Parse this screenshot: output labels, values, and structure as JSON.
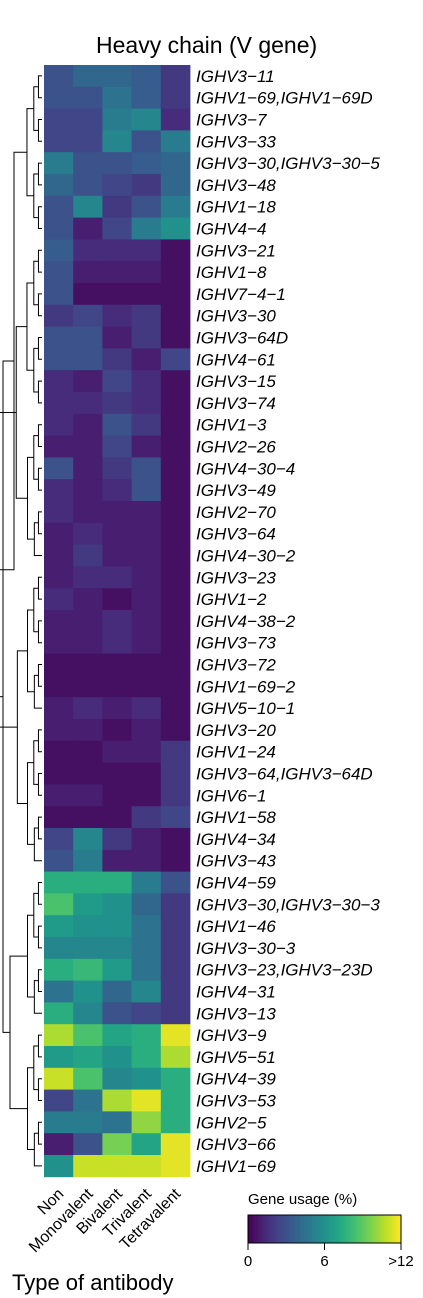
{
  "chart_data": {
    "type": "heatmap",
    "title": "Heavy chain (V gene)",
    "xlabel": "Type of antibody",
    "columns": [
      "Non",
      "Monovalent",
      "Bivalent",
      "Trivalent",
      "Tetravalent"
    ],
    "rows": [
      "IGHV3−11",
      "IGHV1−69,IGHV1−69D",
      "IGHV3−7",
      "IGHV3−33",
      "IGHV3−30,IGHV3−30−5",
      "IGHV3−48",
      "IGHV1−18",
      "IGHV4−4",
      "IGHV3−21",
      "IGHV1−8",
      "IGHV7−4−1",
      "IGHV3−30",
      "IGHV3−64D",
      "IGHV4−61",
      "IGHV3−15",
      "IGHV3−74",
      "IGHV1−3",
      "IGHV2−26",
      "IGHV4−30−4",
      "IGHV3−49",
      "IGHV2−70",
      "IGHV3−64",
      "IGHV4−30−2",
      "IGHV3−23",
      "IGHV1−2",
      "IGHV4−38−2",
      "IGHV3−73",
      "IGHV3−72",
      "IGHV1−69−2",
      "IGHV5−10−1",
      "IGHV3−20",
      "IGHV1−24",
      "IGHV3−64,IGHV3−64D",
      "IGHV6−1",
      "IGHV1−58",
      "IGHV4−34",
      "IGHV3−43",
      "IGHV4−59",
      "IGHV3−30,IGHV3−30−3",
      "IGHV1−46",
      "IGHV3−30−3",
      "IGHV3−23,IGHV3−23D",
      "IGHV4−31",
      "IGHV3−13",
      "IGHV3−9",
      "IGHV5−51",
      "IGHV4−39",
      "IGHV3−53",
      "IGHV2−5",
      "IGHV3−66",
      "IGHV1−69"
    ],
    "values": [
      [
        3.0,
        4.0,
        4.0,
        3.5,
        2.0
      ],
      [
        3.0,
        3.0,
        4.5,
        3.5,
        2.0
      ],
      [
        2.5,
        2.5,
        5.0,
        5.5,
        1.5
      ],
      [
        2.5,
        2.5,
        5.5,
        3.0,
        5.0
      ],
      [
        5.0,
        3.0,
        3.0,
        3.5,
        4.0
      ],
      [
        4.0,
        3.0,
        2.5,
        2.0,
        4.0
      ],
      [
        3.0,
        5.5,
        2.0,
        3.0,
        5.0
      ],
      [
        3.0,
        1.0,
        2.5,
        5.0,
        6.0
      ],
      [
        3.5,
        1.5,
        1.5,
        1.5,
        0.5
      ],
      [
        3.0,
        1.0,
        1.0,
        1.0,
        0.5
      ],
      [
        3.0,
        0.5,
        0.5,
        0.5,
        0.5
      ],
      [
        2.0,
        2.5,
        1.5,
        2.0,
        0.5
      ],
      [
        3.0,
        3.0,
        1.0,
        2.0,
        0.5
      ],
      [
        3.0,
        3.0,
        2.0,
        1.0,
        2.5
      ],
      [
        1.5,
        1.0,
        2.5,
        1.5,
        0.5
      ],
      [
        1.5,
        1.5,
        2.0,
        1.5,
        0.5
      ],
      [
        1.5,
        1.0,
        3.0,
        2.0,
        0.5
      ],
      [
        1.0,
        1.0,
        2.5,
        1.0,
        0.5
      ],
      [
        3.0,
        1.0,
        2.0,
        3.0,
        0.5
      ],
      [
        1.5,
        1.0,
        1.5,
        3.0,
        0.5
      ],
      [
        1.5,
        1.0,
        1.0,
        1.0,
        0.5
      ],
      [
        1.0,
        1.5,
        1.0,
        1.0,
        0.5
      ],
      [
        1.0,
        2.0,
        1.0,
        1.0,
        0.5
      ],
      [
        1.0,
        1.5,
        1.5,
        1.0,
        0.5
      ],
      [
        1.5,
        1.0,
        0.5,
        1.0,
        0.5
      ],
      [
        1.0,
        1.0,
        1.5,
        1.0,
        0.5
      ],
      [
        1.0,
        1.0,
        1.5,
        1.0,
        0.5
      ],
      [
        0.5,
        0.5,
        0.5,
        0.5,
        0.5
      ],
      [
        0.5,
        0.5,
        0.5,
        0.5,
        0.5
      ],
      [
        1.0,
        1.5,
        1.0,
        1.5,
        0.5
      ],
      [
        1.0,
        1.0,
        0.5,
        1.0,
        0.5
      ],
      [
        0.5,
        0.5,
        1.0,
        1.0,
        2.0
      ],
      [
        0.5,
        0.5,
        0.5,
        0.5,
        2.0
      ],
      [
        1.0,
        1.0,
        0.5,
        0.5,
        2.0
      ],
      [
        0.5,
        0.5,
        0.5,
        2.0,
        2.5
      ],
      [
        2.5,
        5.5,
        2.0,
        1.0,
        0.5
      ],
      [
        3.0,
        5.0,
        1.0,
        1.0,
        0.5
      ],
      [
        7.5,
        7.5,
        7.5,
        5.0,
        3.0
      ],
      [
        8.5,
        6.5,
        6.0,
        4.0,
        2.0
      ],
      [
        6.5,
        6.0,
        6.0,
        4.5,
        2.0
      ],
      [
        5.5,
        5.5,
        5.5,
        4.5,
        2.0
      ],
      [
        7.5,
        8.0,
        6.5,
        4.5,
        2.0
      ],
      [
        4.5,
        6.0,
        4.0,
        5.5,
        2.0
      ],
      [
        7.5,
        5.5,
        3.0,
        2.5,
        2.0
      ],
      [
        10.5,
        8.5,
        7.0,
        7.5,
        11.5
      ],
      [
        6.5,
        7.0,
        6.0,
        7.5,
        10.5
      ],
      [
        11.0,
        8.5,
        5.5,
        6.0,
        7.5
      ],
      [
        2.5,
        4.5,
        10.5,
        11.5,
        7.5
      ],
      [
        5.0,
        5.0,
        4.5,
        10.0,
        7.5
      ],
      [
        1.0,
        3.0,
        9.5,
        7.0,
        11.5
      ],
      [
        6.0,
        11.0,
        11.0,
        11.0,
        11.5
      ]
    ],
    "colorbar": {
      "title": "Gene usage (%)",
      "range": [
        0,
        12
      ],
      "tick_labels": [
        "0",
        "6",
        ">12"
      ],
      "tick_values": [
        0,
        6,
        12
      ],
      "colormap": "viridis"
    }
  }
}
